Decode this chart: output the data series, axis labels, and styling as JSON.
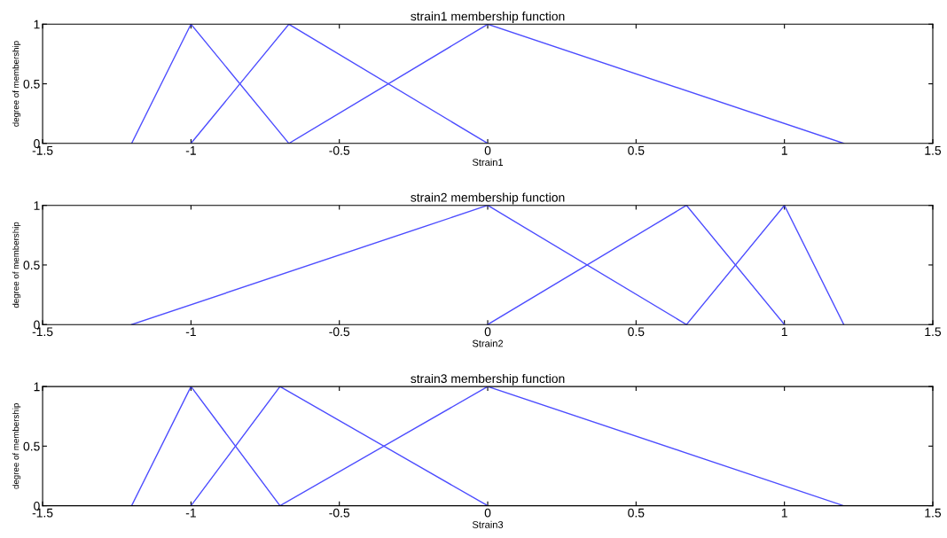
{
  "chart_data": [
    {
      "type": "line",
      "title": "strain1 membership function",
      "xlabel": "Strain1",
      "ylabel": "degree of membership",
      "xlim": [
        -1.5,
        1.5
      ],
      "ylim": [
        0,
        1
      ],
      "xticks": [
        -1.5,
        -1,
        -0.5,
        0,
        0.5,
        1,
        1.5
      ],
      "yticks": [
        0,
        0.5,
        1
      ],
      "grid": false,
      "legend": false,
      "marker": "none",
      "line_style": "solid",
      "series": [
        {
          "color": "#4d4dff",
          "x": [
            -1.2,
            -1,
            -0.67
          ],
          "values": [
            0,
            1,
            0
          ]
        },
        {
          "color": "#4d4dff",
          "x": [
            -1,
            -0.67,
            0
          ],
          "values": [
            0,
            1,
            0
          ]
        },
        {
          "color": "#4d4dff",
          "x": [
            -0.67,
            0,
            1.2
          ],
          "values": [
            0,
            1,
            0
          ]
        }
      ]
    },
    {
      "type": "line",
      "title": "strain2 membership function",
      "xlabel": "Strain2",
      "ylabel": "degree of membership",
      "xlim": [
        -1.5,
        1.5
      ],
      "ylim": [
        0,
        1
      ],
      "xticks": [
        -1.5,
        -1,
        -0.5,
        0,
        0.5,
        1,
        1.5
      ],
      "yticks": [
        0,
        0.5,
        1
      ],
      "grid": false,
      "legend": false,
      "marker": "none",
      "line_style": "solid",
      "series": [
        {
          "color": "#4d4dff",
          "x": [
            -1.2,
            0,
            0.67
          ],
          "values": [
            0,
            1,
            0
          ]
        },
        {
          "color": "#4d4dff",
          "x": [
            0,
            0.67,
            1
          ],
          "values": [
            0,
            1,
            0
          ]
        },
        {
          "color": "#4d4dff",
          "x": [
            0.67,
            1,
            1.2
          ],
          "values": [
            0,
            1,
            0
          ]
        }
      ]
    },
    {
      "type": "line",
      "title": "strain3 membership function",
      "xlabel": "Strain3",
      "ylabel": "degree of membership",
      "xlim": [
        -1.5,
        1.5
      ],
      "ylim": [
        0,
        1
      ],
      "xticks": [
        -1.5,
        -1,
        -0.5,
        0,
        0.5,
        1,
        1.5
      ],
      "yticks": [
        0,
        0.5,
        1
      ],
      "grid": false,
      "legend": false,
      "marker": "none",
      "line_style": "solid",
      "series": [
        {
          "color": "#4d4dff",
          "x": [
            -1.2,
            -1,
            -0.7
          ],
          "values": [
            0,
            1,
            0
          ]
        },
        {
          "color": "#4d4dff",
          "x": [
            -1,
            -0.7,
            0
          ],
          "values": [
            0,
            1,
            0
          ]
        },
        {
          "color": "#4d4dff",
          "x": [
            -0.7,
            0,
            1.2
          ],
          "values": [
            0,
            1,
            0
          ]
        }
      ]
    }
  ]
}
